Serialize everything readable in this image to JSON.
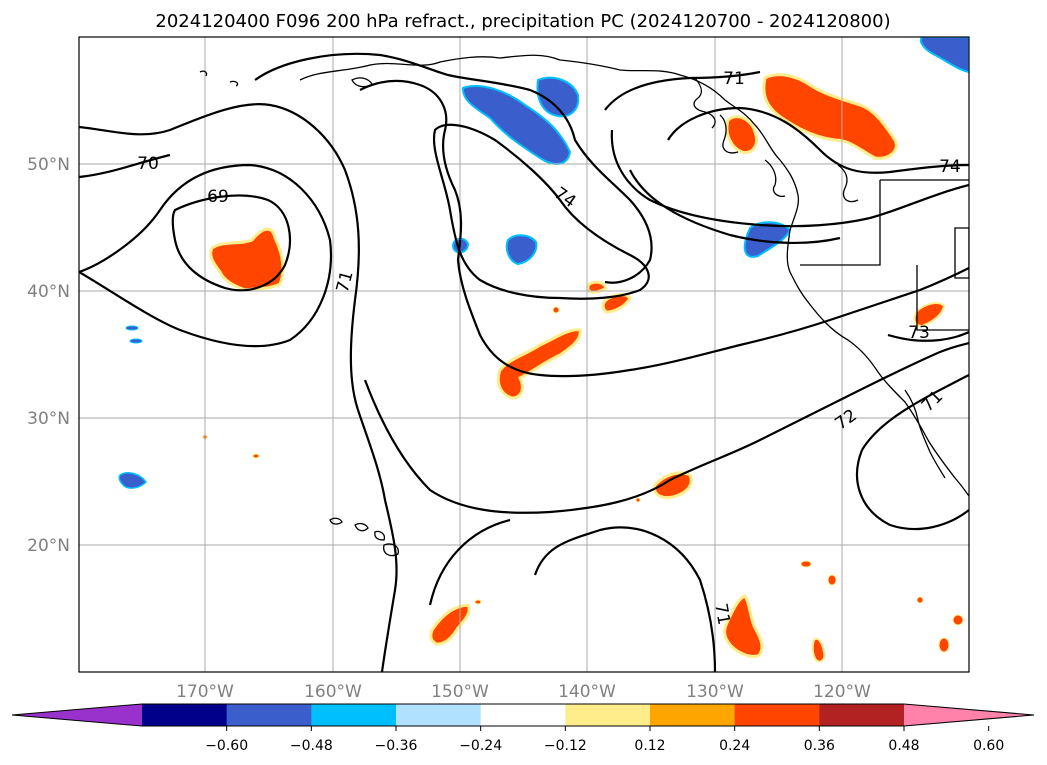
{
  "title": "2024120400 F096 200 hPa refract., precipitation PC (2024120700 - 2024120800)",
  "map": {
    "lat_labels": [
      "50°N",
      "40°N",
      "30°N",
      "20°N"
    ],
    "lon_labels": [
      "170°W",
      "160°W",
      "150°W",
      "140°W",
      "130°W",
      "120°W"
    ],
    "contour_labels": [
      "70",
      "69",
      "71",
      "74",
      "71",
      "74",
      "73",
      "72",
      "71",
      "71"
    ],
    "colors": {
      "contour": "#000000",
      "grid": "#a9a9a9",
      "coast": "#000000"
    }
  },
  "colorbar": {
    "ticks": [
      "−0.60",
      "−0.48",
      "−0.36",
      "−0.24",
      "−0.12",
      "0.12",
      "0.24",
      "0.36",
      "0.48",
      "0.60"
    ],
    "colors": [
      "#9932cc",
      "#00008b",
      "#3a5fcd",
      "#00bfff",
      "#b0e2ff",
      "#ffffff",
      "#ffec8b",
      "#ffa500",
      "#ff4500",
      "#b22222",
      "#ff82ab"
    ]
  }
}
